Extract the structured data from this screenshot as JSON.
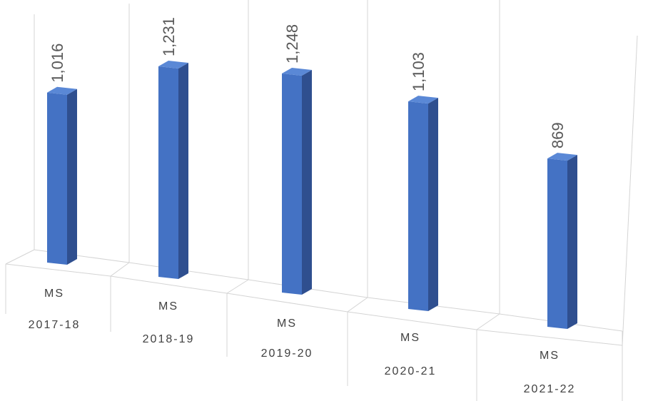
{
  "chart_data": {
    "type": "bar",
    "categories": [
      [
        "MS",
        "2017-18"
      ],
      [
        "MS",
        "2018-19"
      ],
      [
        "MS",
        "2019-20"
      ],
      [
        "MS",
        "2020-21"
      ],
      [
        "MS",
        "2021-22"
      ]
    ],
    "values": [
      1016,
      1231,
      1248,
      1103,
      869
    ],
    "value_labels": [
      "1,016",
      "1,231",
      "1,248",
      "1,103",
      "869"
    ],
    "title": "",
    "xlabel": "",
    "ylabel": "",
    "legend": "none",
    "grid": true,
    "style": "3d-column",
    "colors": {
      "bar_front": "#4472c4",
      "bar_side": "#2f4f8f",
      "bar_top": "#5a88d6",
      "grid": "#d4d4d4",
      "label": "#595959"
    }
  }
}
